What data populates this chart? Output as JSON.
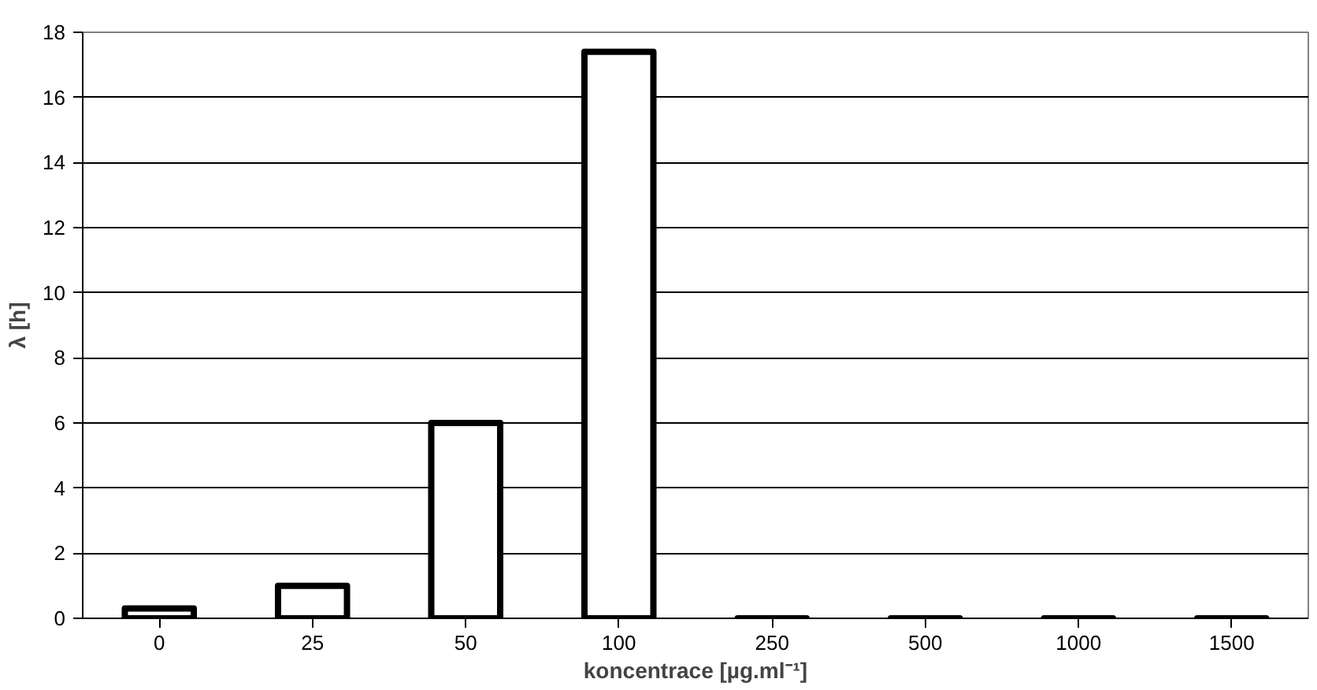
{
  "chart_data": {
    "type": "bar",
    "xlabel": "koncentrace [µg.ml⁻¹]",
    "ylabel": "λ [h]",
    "categories": [
      "0",
      "25",
      "50",
      "100",
      "250",
      "500",
      "1000",
      "1500"
    ],
    "values": [
      0.3,
      1.0,
      6.0,
      17.4,
      0,
      0,
      0,
      0
    ],
    "colors": [
      "#ffffff",
      "#ffffff",
      "#ffffff",
      "#ffffff",
      "#000000",
      "#000000",
      "#000000",
      "#000000"
    ],
    "ylim": [
      0,
      18
    ],
    "yticks": [
      0,
      2,
      4,
      6,
      8,
      10,
      12,
      14,
      16,
      18
    ],
    "grid": "y"
  }
}
